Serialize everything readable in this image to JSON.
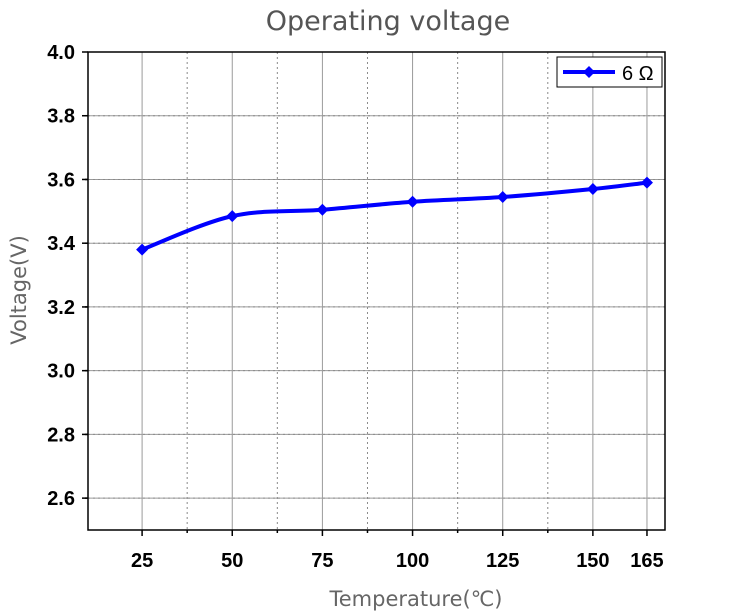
{
  "chart_data": {
    "type": "line",
    "title": "Operating voltage",
    "xlabel": "Temperature(℃)",
    "ylabel": "Voltage(V)",
    "x": [
      25,
      50,
      75,
      100,
      125,
      150,
      165
    ],
    "x_ticks": [
      "25",
      "50",
      "75",
      "100",
      "125",
      "150",
      "165"
    ],
    "y_ticks": [
      "2.6",
      "2.8",
      "3.0",
      "3.2",
      "3.4",
      "3.6",
      "3.8",
      "4.0"
    ],
    "xlim": [
      10,
      170
    ],
    "ylim": [
      2.5,
      4.0
    ],
    "grid": true,
    "legend_position": "top-right",
    "series": [
      {
        "name": "6 Ω",
        "color": "#0000ff",
        "marker": "diamond",
        "values": [
          3.38,
          3.485,
          3.505,
          3.53,
          3.545,
          3.57,
          3.59
        ]
      }
    ]
  }
}
